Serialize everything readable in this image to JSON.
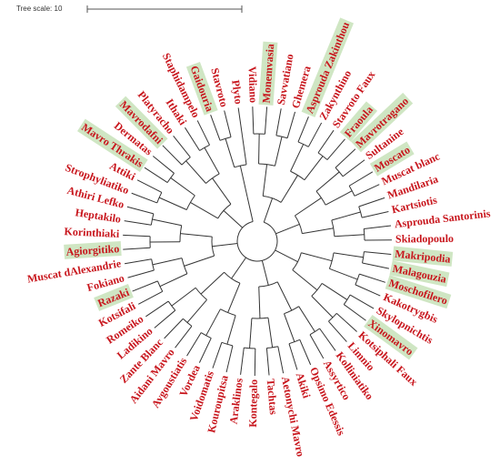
{
  "tree_scale": "Tree scale: 10",
  "leaves": [
    {
      "label": "Vidiano",
      "highlighted": false
    },
    {
      "label": "Monemvasia",
      "highlighted": true
    },
    {
      "label": "Savvatiano",
      "highlighted": false
    },
    {
      "label": "Ghemera",
      "highlighted": false
    },
    {
      "label": "Asprouda Zakinthou",
      "highlighted": true
    },
    {
      "label": "Zakynthino",
      "highlighted": false
    },
    {
      "label": "Stavroto Faux",
      "highlighted": false
    },
    {
      "label": "Fraoula",
      "highlighted": true
    },
    {
      "label": "Mavrotragano",
      "highlighted": true
    },
    {
      "label": "Sultanine",
      "highlighted": false
    },
    {
      "label": "Moscato",
      "highlighted": true
    },
    {
      "label": "Muscat blanc",
      "highlighted": false
    },
    {
      "label": "Mandilaria",
      "highlighted": false
    },
    {
      "label": "Kartsiotis",
      "highlighted": false
    },
    {
      "label": "Asprouda Santorinis",
      "highlighted": false
    },
    {
      "label": "Skiadopoulo",
      "highlighted": false
    },
    {
      "label": "Makripodia",
      "highlighted": true
    },
    {
      "label": "Malagouzia",
      "highlighted": true
    },
    {
      "label": "Moschofilero",
      "highlighted": true
    },
    {
      "label": "Kakotrygbis",
      "highlighted": false
    },
    {
      "label": "Skylopnichtis",
      "highlighted": false
    },
    {
      "label": "Xinomavro",
      "highlighted": true
    },
    {
      "label": "Kotsiphali Faux",
      "highlighted": false
    },
    {
      "label": "Limnio",
      "highlighted": false
    },
    {
      "label": "Kolliniatiko",
      "highlighted": false
    },
    {
      "label": "Assyrtico",
      "highlighted": false
    },
    {
      "label": "Opsimo Edessis",
      "highlighted": false
    },
    {
      "label": "Akiki",
      "highlighted": false
    },
    {
      "label": "Aetonychi Mavro",
      "highlighted": false
    },
    {
      "label": "Tachtas",
      "highlighted": false
    },
    {
      "label": "Kontegalo",
      "highlighted": false
    },
    {
      "label": "Araklinos",
      "highlighted": false
    },
    {
      "label": "Kouroupitsa",
      "highlighted": false
    },
    {
      "label": "Voidomatis",
      "highlighted": false
    },
    {
      "label": "Vordea",
      "highlighted": false
    },
    {
      "label": "Avgoustiatis",
      "highlighted": false
    },
    {
      "label": "Aidani Mavro",
      "highlighted": false
    },
    {
      "label": "Zante Blanc",
      "highlighted": false
    },
    {
      "label": "Ladikino",
      "highlighted": false
    },
    {
      "label": "Romeiko",
      "highlighted": false
    },
    {
      "label": "Kotsifali",
      "highlighted": false
    },
    {
      "label": "Razaki",
      "highlighted": true
    },
    {
      "label": "Fokiano",
      "highlighted": false
    },
    {
      "label": "Muscat dAlexandrie",
      "highlighted": false
    },
    {
      "label": "Agiorgitiko",
      "highlighted": true
    },
    {
      "label": "Korinthiaki",
      "highlighted": false
    },
    {
      "label": "Heptakilo",
      "highlighted": false
    },
    {
      "label": "Athiri Lefko",
      "highlighted": false
    },
    {
      "label": "Strophyliatiko",
      "highlighted": false
    },
    {
      "label": "Attiki",
      "highlighted": false
    },
    {
      "label": "Mavro Thrakis",
      "highlighted": true
    },
    {
      "label": "Dermatas",
      "highlighted": false
    },
    {
      "label": "Mavrodafni",
      "highlighted": true
    },
    {
      "label": "Platyracho",
      "highlighted": false
    },
    {
      "label": "Ithaki",
      "highlighted": false
    },
    {
      "label": "Staphidampelo",
      "highlighted": false
    },
    {
      "label": "Gaidouria",
      "highlighted": true
    },
    {
      "label": "Stavroto",
      "highlighted": false
    },
    {
      "label": "Plyto",
      "highlighted": false
    }
  ]
}
